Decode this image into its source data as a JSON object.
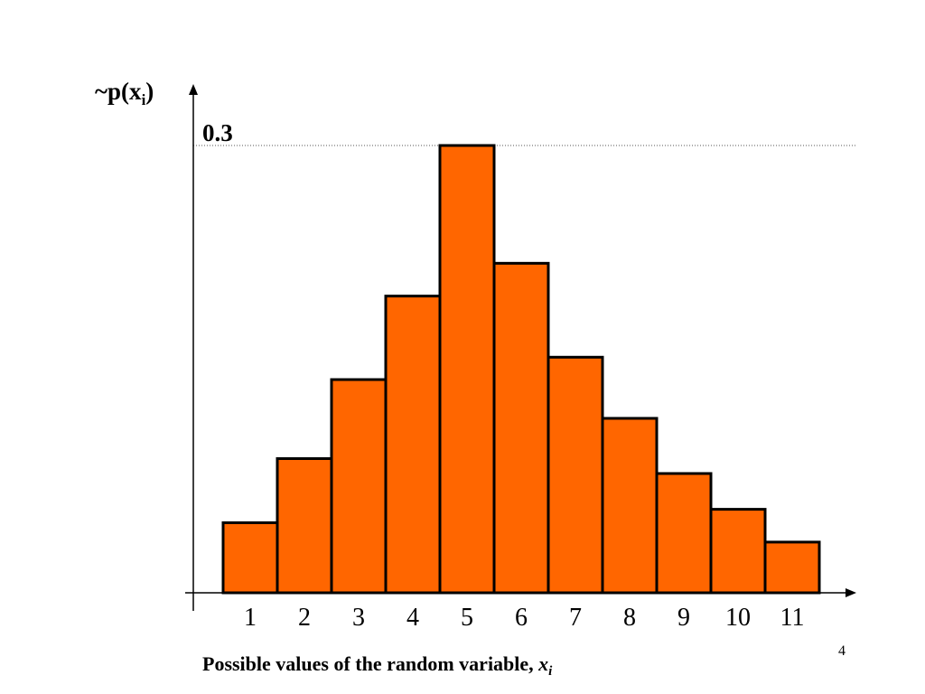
{
  "chart_data": {
    "type": "bar",
    "categories": [
      "1",
      "2",
      "3",
      "4",
      "5",
      "6",
      "7",
      "8",
      "9",
      "10",
      "11"
    ],
    "values": [
      0.047,
      0.09,
      0.143,
      0.199,
      0.3,
      0.221,
      0.158,
      0.117,
      0.08,
      0.056,
      0.034
    ],
    "ylabel": {
      "main": "~p(x",
      "sub": "i",
      "close": ")"
    },
    "xlabel": {
      "text": "Possible values of the random variable, ",
      "var": "x",
      "sub": "i"
    },
    "reference_line": {
      "value": 0.3,
      "label": "0.3"
    },
    "ylim": [
      0,
      0.33
    ],
    "grid": false,
    "bar_color": "#FF6600",
    "bar_edge_color": "#000000"
  },
  "page_number": "4"
}
